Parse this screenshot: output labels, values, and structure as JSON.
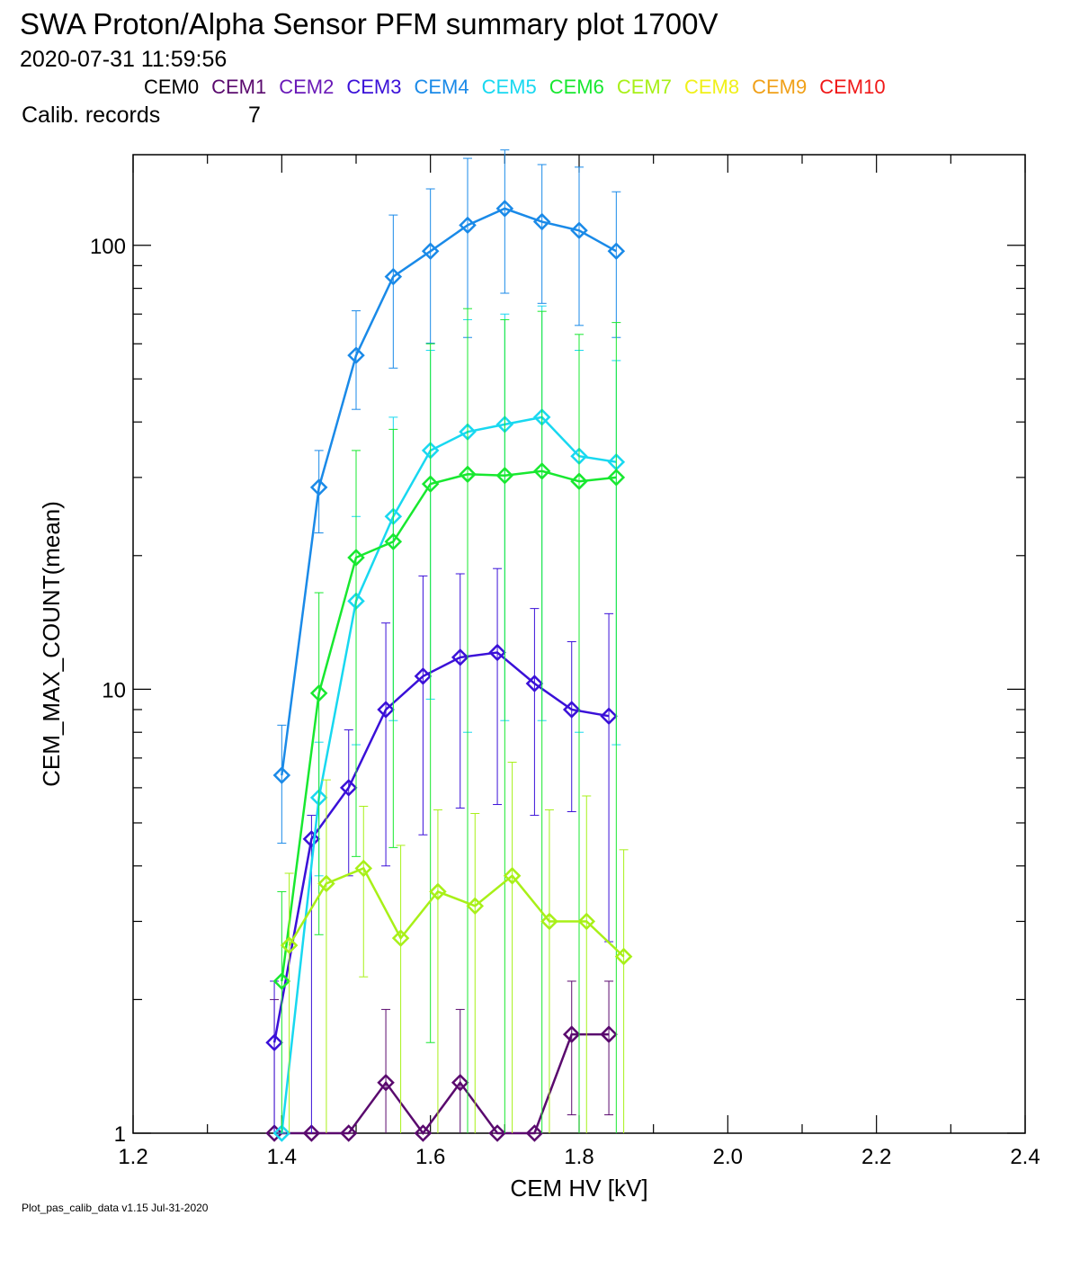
{
  "header": {
    "title": "SWA Proton/Alpha Sensor PFM summary plot 1700V",
    "timestamp": "2020-07-31 11:59:56",
    "calib_label": "Calib. records",
    "calib_value": "7"
  },
  "legend": [
    {
      "name": "CEM0",
      "color": "#000000"
    },
    {
      "name": "CEM1",
      "color": "#5a0a6e"
    },
    {
      "name": "CEM2",
      "color": "#6a1ab8"
    },
    {
      "name": "CEM3",
      "color": "#3a10d8"
    },
    {
      "name": "CEM4",
      "color": "#1a8ae8"
    },
    {
      "name": "CEM5",
      "color": "#18d8f0"
    },
    {
      "name": "CEM6",
      "color": "#18e830"
    },
    {
      "name": "CEM7",
      "color": "#a8f018"
    },
    {
      "name": "CEM8",
      "color": "#f0f018"
    },
    {
      "name": "CEM9",
      "color": "#f0a018"
    },
    {
      "name": "CEM10",
      "color": "#f01818"
    }
  ],
  "footer": "Plot_pas_calib_data v1.15 Jul-31-2020",
  "chart_data": {
    "type": "line",
    "xlabel": "CEM HV [kV]",
    "ylabel": "CEM_MAX_COUNT(mean)",
    "xlim": [
      1.2,
      2.4
    ],
    "ylim": [
      1,
      160
    ],
    "yscale": "log",
    "xticks": [
      "1.2",
      "1.4",
      "1.6",
      "1.8",
      "2.0",
      "2.2",
      "2.4"
    ],
    "yticks": [
      "1",
      "10",
      "100"
    ],
    "grid": false,
    "series": [
      {
        "name": "CEM1",
        "color": "#5a0a6e",
        "x": [
          1.39,
          1.44,
          1.49,
          1.54,
          1.59,
          1.64,
          1.69,
          1.74,
          1.79,
          1.84
        ],
        "y": [
          1.0,
          1.0,
          1.0,
          1.3,
          1.0,
          1.3,
          1.0,
          1.0,
          1.67,
          1.67
        ],
        "err_low": [
          0.0,
          0.0,
          0.0,
          0.7,
          0.0,
          0.7,
          0.0,
          0.0,
          1.1,
          1.1
        ],
        "err_high": [
          2.0,
          1.0,
          1.0,
          1.9,
          1.0,
          1.9,
          1.0,
          1.0,
          2.2,
          2.2
        ]
      },
      {
        "name": "CEM3",
        "color": "#3a10d8",
        "x": [
          1.39,
          1.44,
          1.49,
          1.54,
          1.59,
          1.64,
          1.69,
          1.74,
          1.79,
          1.84
        ],
        "y": [
          1.6,
          4.6,
          6.0,
          9.0,
          10.7,
          11.8,
          12.1,
          10.3,
          9.0,
          8.7
        ],
        "err_low": [
          1.0,
          1.0,
          3.8,
          4.0,
          4.7,
          5.4,
          5.5,
          5.2,
          5.3,
          2.7
        ],
        "err_high": [
          2.2,
          5.2,
          8.1,
          14.1,
          18.0,
          18.2,
          18.7,
          15.2,
          12.8,
          14.8
        ]
      },
      {
        "name": "CEM4",
        "color": "#1a8ae8",
        "x": [
          1.4,
          1.45,
          1.5,
          1.55,
          1.6,
          1.65,
          1.7,
          1.75,
          1.8,
          1.85
        ],
        "y": [
          6.4,
          28.5,
          56.5,
          85.0,
          97.0,
          111.0,
          121.0,
          113.0,
          108.0,
          97.0
        ],
        "err_low": [
          4.5,
          22.5,
          42.7,
          52.9,
          60.2,
          62.0,
          78.0,
          74.0,
          66.0,
          62.0
        ],
        "err_high": [
          8.3,
          34.5,
          71.2,
          117.0,
          134.0,
          157.0,
          164.0,
          152.0,
          150.0,
          132.0
        ]
      },
      {
        "name": "CEM5",
        "color": "#18d8f0",
        "x": [
          1.4,
          1.45,
          1.5,
          1.55,
          1.6,
          1.65,
          1.7,
          1.75,
          1.8,
          1.85
        ],
        "y": [
          1.0,
          5.7,
          15.8,
          24.5,
          34.5,
          38.0,
          39.5,
          41.0,
          33.5,
          32.5
        ],
        "err_low": [
          0.0,
          3.8,
          7.5,
          8.5,
          9.5,
          8.0,
          8.5,
          8.5,
          8.0,
          7.5
        ],
        "err_high": [
          1.0,
          7.6,
          24.5,
          41.0,
          58.0,
          68.0,
          70.0,
          73.0,
          58.0,
          55.0
        ]
      },
      {
        "name": "CEM6",
        "color": "#18e830",
        "x": [
          1.4,
          1.45,
          1.5,
          1.55,
          1.6,
          1.65,
          1.7,
          1.75,
          1.8,
          1.85
        ],
        "y": [
          2.2,
          9.8,
          19.8,
          21.5,
          29.0,
          30.5,
          30.3,
          31.0,
          29.4,
          30.0
        ],
        "err_low": [
          1.0,
          2.8,
          4.2,
          4.4,
          1.6,
          1.0,
          1.0,
          1.0,
          1.0,
          1.0
        ],
        "err_high": [
          3.5,
          16.5,
          34.5,
          38.5,
          60.0,
          72.0,
          68.0,
          71.0,
          63.0,
          67.0
        ]
      },
      {
        "name": "CEM7",
        "color": "#a8f018",
        "x": [
          1.41,
          1.46,
          1.51,
          1.56,
          1.61,
          1.66,
          1.71,
          1.76,
          1.81,
          1.86
        ],
        "y": [
          2.65,
          3.65,
          3.95,
          2.75,
          3.5,
          3.25,
          3.8,
          3.0,
          3.0,
          2.5
        ],
        "err_low": [
          1.0,
          1.0,
          2.25,
          1.0,
          1.0,
          1.0,
          1.0,
          1.0,
          1.0,
          1.0
        ],
        "err_high": [
          3.85,
          6.25,
          5.45,
          4.45,
          5.35,
          5.25,
          6.85,
          5.35,
          5.75,
          4.35
        ]
      }
    ]
  }
}
